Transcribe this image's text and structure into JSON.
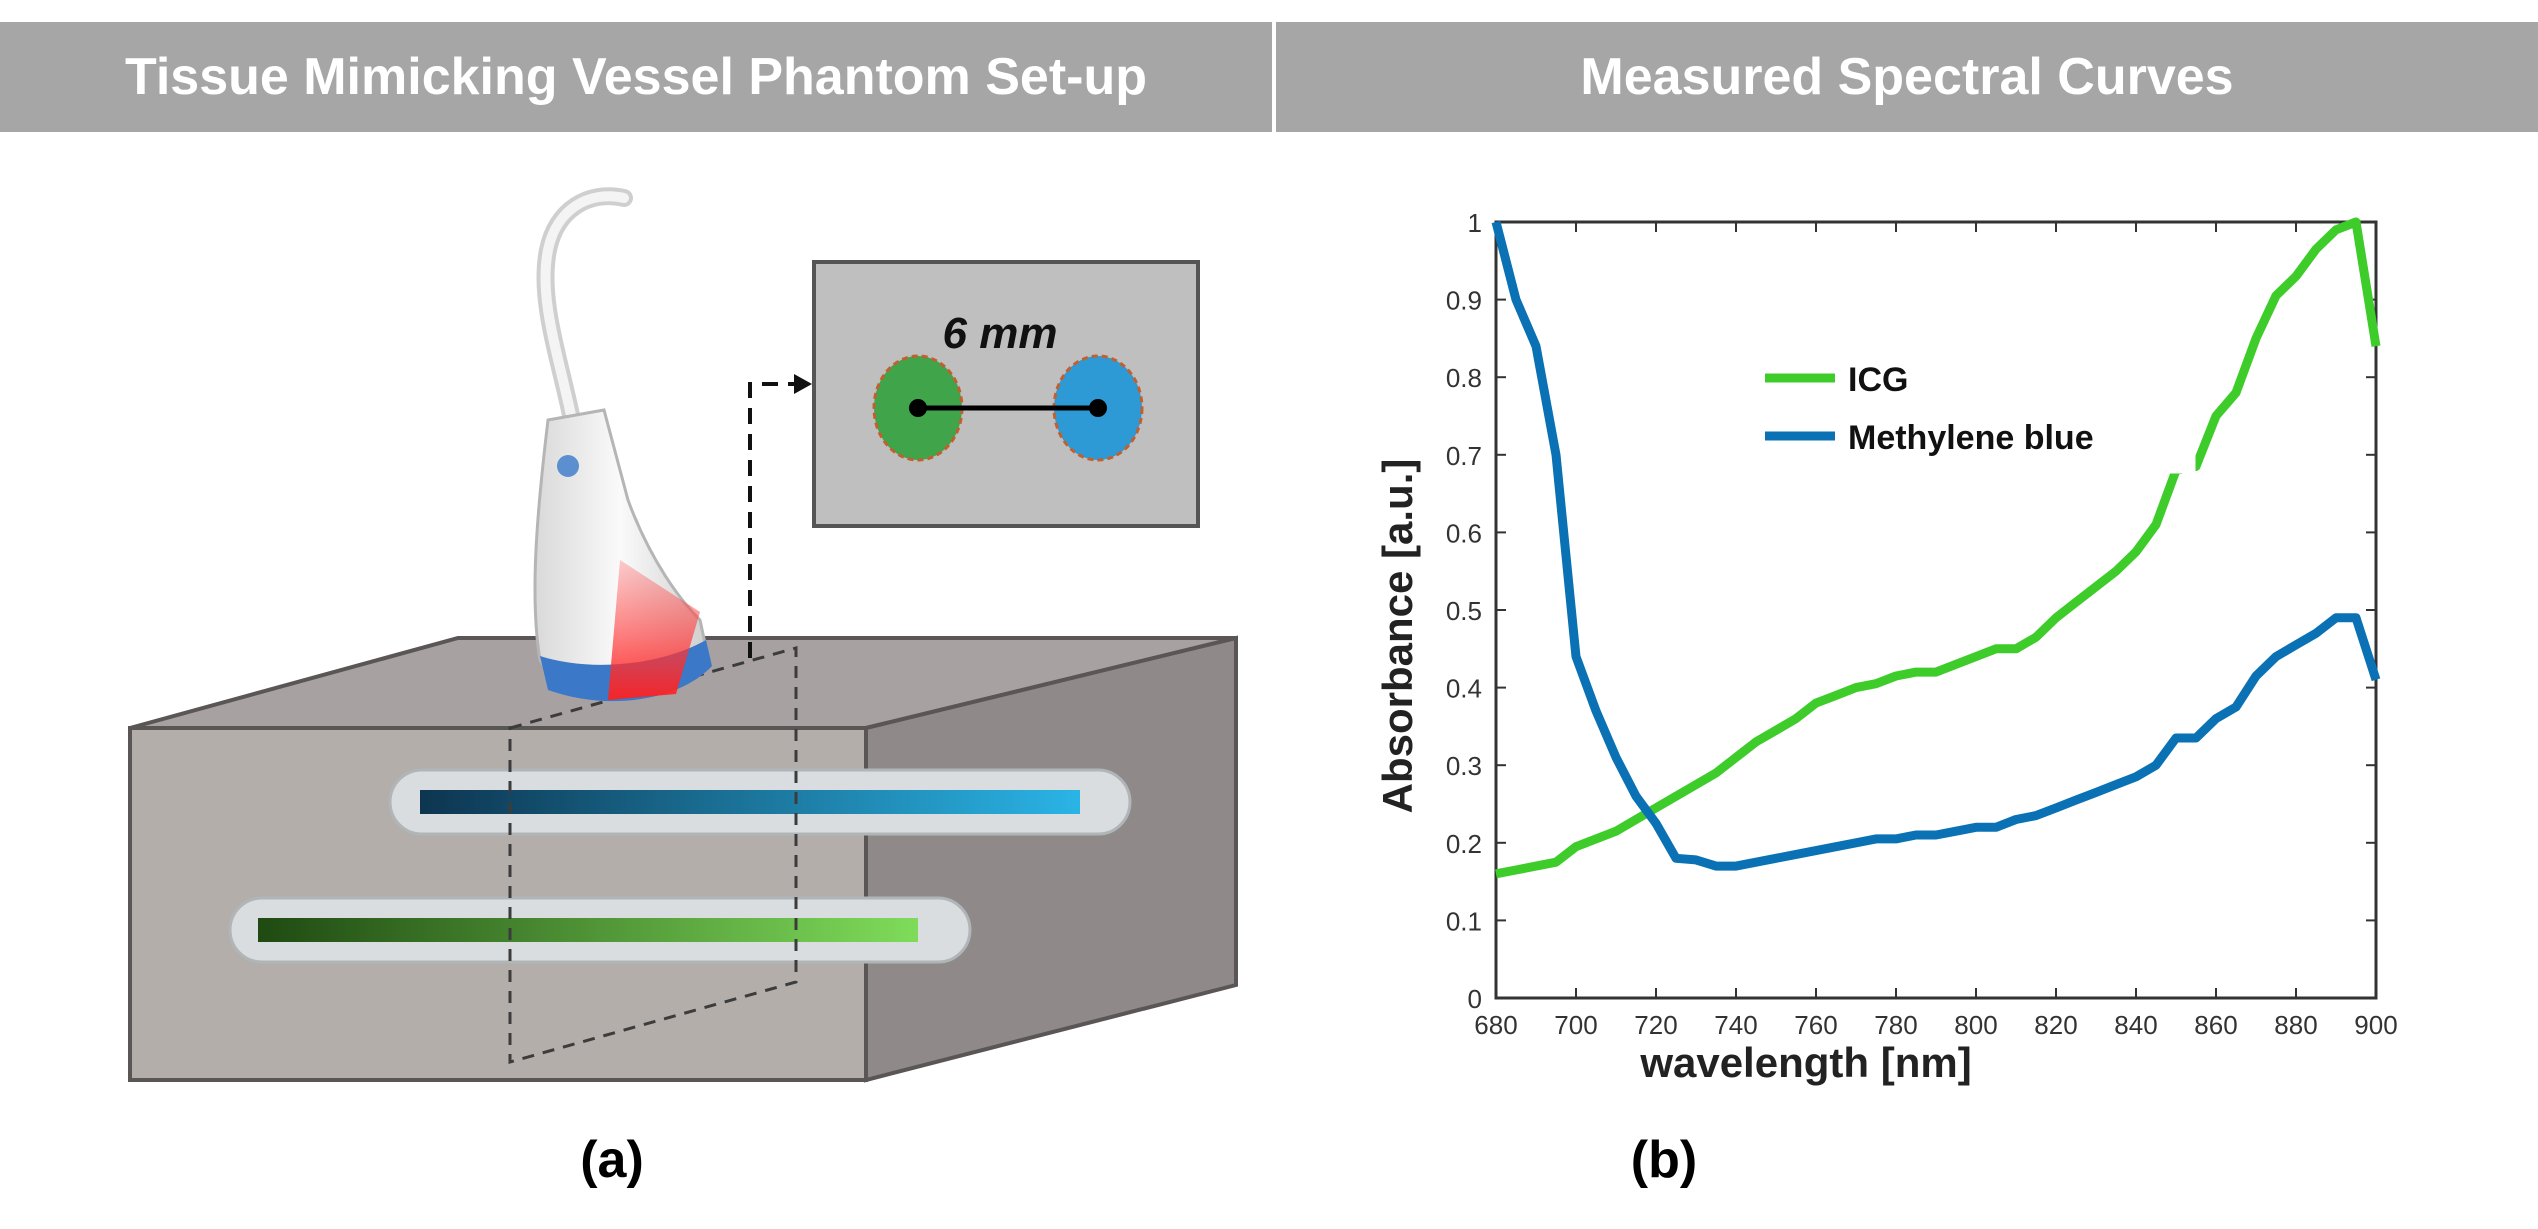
{
  "headers": {
    "left": "Tissue Mimicking Vessel Phantom Set-up",
    "right": "Measured Spectral Curves"
  },
  "panel_labels": {
    "a": "(a)",
    "b": "(b)"
  },
  "phantom": {
    "inset_label": "6 mm"
  },
  "colors": {
    "header_bg": "#a6a6a6",
    "icg": "#3dcc2a",
    "methylene_blue": "#0a72b4"
  },
  "chart_data": {
    "type": "line",
    "xlabel": "wavelength [nm]",
    "ylabel": "Absorbance [a.u.]",
    "xlim": [
      680,
      900
    ],
    "ylim": [
      0,
      1
    ],
    "xticks": [
      680,
      700,
      720,
      740,
      760,
      780,
      800,
      820,
      840,
      860,
      880,
      900
    ],
    "yticks": [
      0,
      0.1,
      0.2,
      0.3,
      0.4,
      0.5,
      0.6,
      0.7,
      0.8,
      0.9,
      1
    ],
    "grid": false,
    "legend_position": "top-center",
    "series": [
      {
        "name": "ICG",
        "color": "#3dcc2a",
        "points": [
          [
            680,
            0.16
          ],
          [
            685,
            0.165
          ],
          [
            690,
            0.17
          ],
          [
            695,
            0.175
          ],
          [
            700,
            0.195
          ],
          [
            705,
            0.205
          ],
          [
            710,
            0.215
          ],
          [
            715,
            0.23
          ],
          [
            720,
            0.245
          ],
          [
            725,
            0.26
          ],
          [
            730,
            0.275
          ],
          [
            735,
            0.29
          ],
          [
            740,
            0.31
          ],
          [
            745,
            0.33
          ],
          [
            750,
            0.345
          ],
          [
            755,
            0.36
          ],
          [
            760,
            0.38
          ],
          [
            765,
            0.39
          ],
          [
            770,
            0.4
          ],
          [
            775,
            0.405
          ],
          [
            780,
            0.415
          ],
          [
            785,
            0.42
          ],
          [
            790,
            0.42
          ],
          [
            795,
            0.43
          ],
          [
            800,
            0.44
          ],
          [
            805,
            0.45
          ],
          [
            810,
            0.45
          ],
          [
            815,
            0.465
          ],
          [
            820,
            0.49
          ],
          [
            825,
            0.51
          ],
          [
            830,
            0.53
          ],
          [
            835,
            0.55
          ],
          [
            840,
            0.575
          ],
          [
            845,
            0.61
          ],
          [
            850,
            0.68
          ],
          [
            855,
            0.685
          ],
          [
            860,
            0.75
          ],
          [
            865,
            0.78
          ],
          [
            870,
            0.85
          ],
          [
            875,
            0.905
          ],
          [
            880,
            0.93
          ],
          [
            885,
            0.965
          ],
          [
            890,
            0.99
          ],
          [
            895,
            1.0
          ],
          [
            900,
            0.84
          ]
        ]
      },
      {
        "name": "Methylene blue",
        "color": "#0a72b4",
        "points": [
          [
            680,
            1.0
          ],
          [
            685,
            0.9
          ],
          [
            690,
            0.84
          ],
          [
            695,
            0.7
          ],
          [
            700,
            0.44
          ],
          [
            705,
            0.37
          ],
          [
            710,
            0.31
          ],
          [
            715,
            0.26
          ],
          [
            720,
            0.225
          ],
          [
            725,
            0.18
          ],
          [
            730,
            0.178
          ],
          [
            735,
            0.17
          ],
          [
            740,
            0.17
          ],
          [
            745,
            0.175
          ],
          [
            750,
            0.18
          ],
          [
            755,
            0.185
          ],
          [
            760,
            0.19
          ],
          [
            765,
            0.195
          ],
          [
            770,
            0.2
          ],
          [
            775,
            0.205
          ],
          [
            780,
            0.205
          ],
          [
            785,
            0.21
          ],
          [
            790,
            0.21
          ],
          [
            795,
            0.215
          ],
          [
            800,
            0.22
          ],
          [
            805,
            0.22
          ],
          [
            810,
            0.23
          ],
          [
            815,
            0.235
          ],
          [
            820,
            0.245
          ],
          [
            825,
            0.255
          ],
          [
            830,
            0.265
          ],
          [
            835,
            0.275
          ],
          [
            840,
            0.285
          ],
          [
            845,
            0.3
          ],
          [
            850,
            0.335
          ],
          [
            855,
            0.335
          ],
          [
            860,
            0.36
          ],
          [
            865,
            0.375
          ],
          [
            870,
            0.415
          ],
          [
            875,
            0.44
          ],
          [
            880,
            0.455
          ],
          [
            885,
            0.47
          ],
          [
            890,
            0.49
          ],
          [
            895,
            0.49
          ],
          [
            900,
            0.41
          ]
        ]
      }
    ]
  }
}
